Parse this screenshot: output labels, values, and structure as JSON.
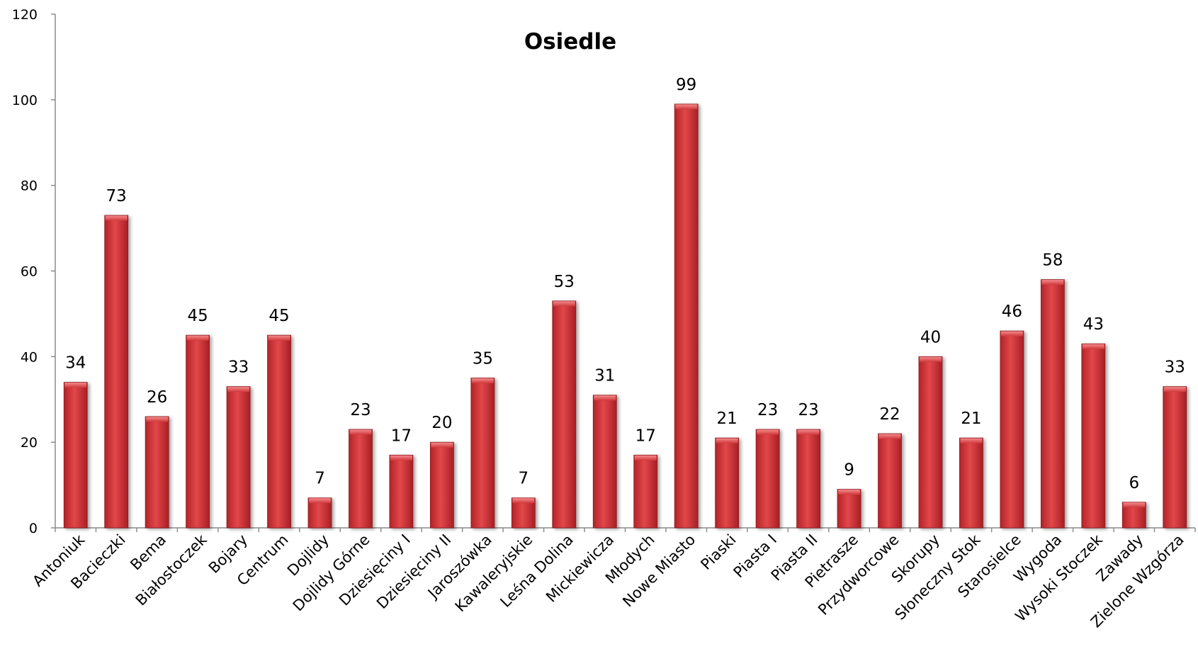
{
  "chart_data": {
    "type": "bar",
    "title": "Osiedle",
    "xlabel": "",
    "ylabel": "",
    "ylim": [
      0,
      120
    ],
    "yticks": [
      0,
      20,
      40,
      60,
      80,
      100,
      120
    ],
    "grid": false,
    "legend": "none",
    "bar_color": "#d9383a",
    "categories": [
      "Antoniuk",
      "Bacieczki",
      "Bema",
      "Białostoczek",
      "Bojary",
      "Centrum",
      "Dojlidy",
      "Dojlidy Górne",
      "Dziesięciny I",
      "Dziesięciny II",
      "Jaroszówka",
      "Kawaleryjskie",
      "Leśna Dolina",
      "Mickiewicza",
      "Młodych",
      "Nowe Miasto",
      "Piaski",
      "Piasta I",
      "Piasta II",
      "Pietrasze",
      "Przydworcowe",
      "Skorupy",
      "Słoneczny Stok",
      "Starosielce",
      "Wygoda",
      "Wysoki Stoczek",
      "Zawady",
      "Zielone Wzgórza"
    ],
    "values": [
      34,
      73,
      26,
      45,
      33,
      45,
      7,
      23,
      17,
      20,
      35,
      7,
      53,
      31,
      17,
      99,
      21,
      23,
      23,
      9,
      22,
      40,
      21,
      46,
      58,
      43,
      6,
      33
    ],
    "data_labels": [
      "34",
      "73",
      "26",
      "45",
      "33",
      "45",
      "7",
      "23",
      "17",
      "20",
      "35",
      "7",
      "53",
      "31",
      "17",
      "99",
      "21",
      "23",
      "23",
      "9",
      "22",
      "40",
      "21",
      "46",
      "58",
      "43",
      "6",
      "33"
    ]
  }
}
